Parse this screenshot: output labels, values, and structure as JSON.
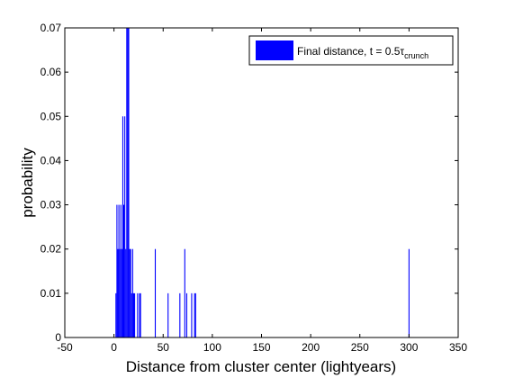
{
  "chart_data": {
    "type": "bar",
    "xlabel": "Distance from cluster center (lightyears)",
    "ylabel": "probability",
    "xlim": [
      -50,
      350
    ],
    "ylim": [
      0,
      0.07
    ],
    "xticks": [
      -50,
      0,
      50,
      100,
      150,
      200,
      250,
      300,
      350
    ],
    "yticks": [
      0,
      0.01,
      0.02,
      0.03,
      0.04,
      0.05,
      0.06,
      0.07
    ],
    "xtick_labels": [
      "-50",
      "0",
      "50",
      "100",
      "150",
      "200",
      "250",
      "300",
      "350"
    ],
    "ytick_labels": [
      "0",
      "0.01",
      "0.02",
      "0.03",
      "0.04",
      "0.05",
      "0.06",
      "0.07"
    ],
    "grid": false,
    "legend_position": "top-right",
    "bar_color": "#0000ff",
    "bin_width": 1,
    "series": [
      {
        "legend_main": "Final distance, t = 0.5τ",
        "legend_sub": "crunch",
        "x": [
          2,
          3,
          4,
          5,
          6,
          7,
          8,
          9,
          10,
          11,
          12,
          13,
          14,
          15,
          16,
          17,
          18,
          19,
          20,
          21,
          24,
          26,
          27,
          42,
          55,
          67,
          72,
          74,
          79,
          82,
          83,
          300
        ],
        "values": [
          0.01,
          0.03,
          0.02,
          0.03,
          0.02,
          0.03,
          0.02,
          0.05,
          0.03,
          0.05,
          0.02,
          0.07,
          0.07,
          0.07,
          0.02,
          0.02,
          0.01,
          0.02,
          0.01,
          0.01,
          0.01,
          0.01,
          0.01,
          0.02,
          0.01,
          0.01,
          0.02,
          0.01,
          0.01,
          0.01,
          0.01,
          0.02
        ]
      }
    ]
  }
}
